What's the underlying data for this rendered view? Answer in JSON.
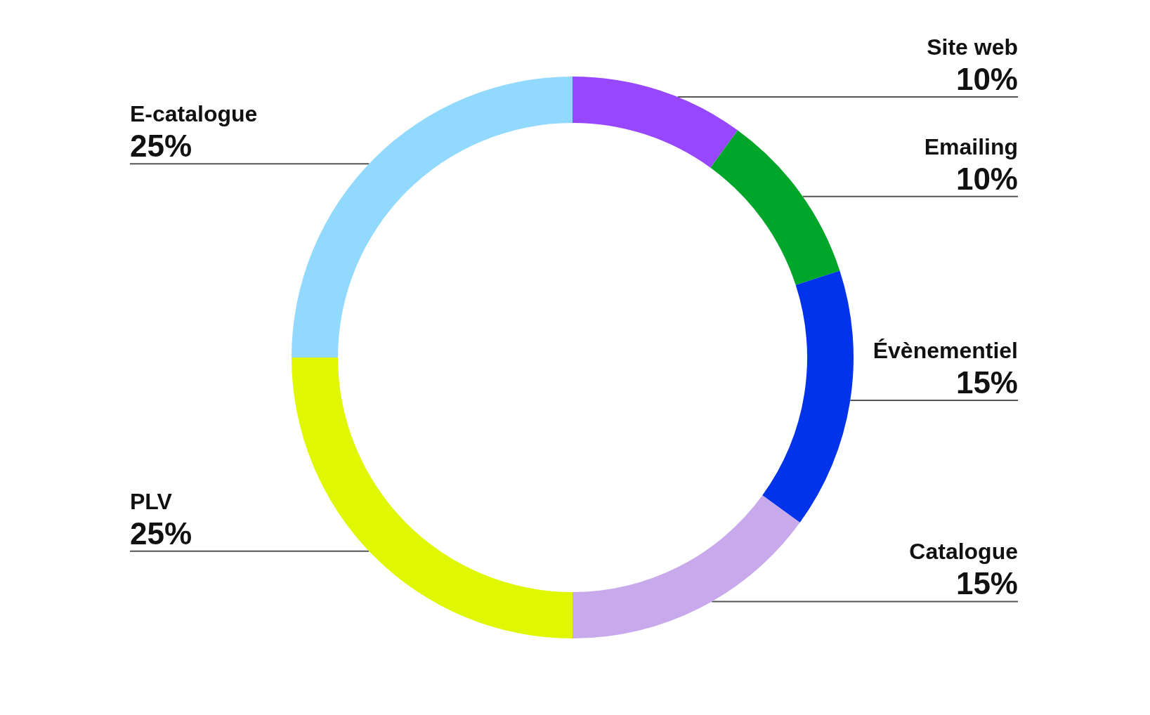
{
  "chart_data": {
    "type": "donut",
    "categories": [
      "Site web",
      "Emailing",
      "Évènementiel",
      "Catalogue",
      "PLV",
      "E-catalogue"
    ],
    "values": [
      10,
      10,
      15,
      15,
      25,
      25
    ],
    "value_labels": [
      "10%",
      "10%",
      "15%",
      "15%",
      "25%",
      "25%"
    ],
    "colors": [
      "#9747ff",
      "#00a62a",
      "#0033ea",
      "#c8aaec",
      "#dff700",
      "#91d9ff"
    ]
  }
}
